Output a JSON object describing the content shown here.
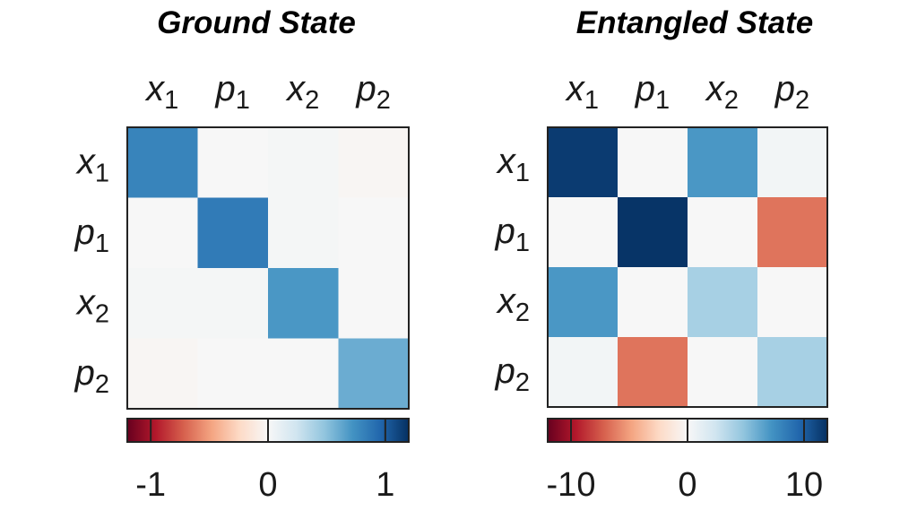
{
  "chart_data": [
    {
      "type": "heatmap",
      "title": "Ground State",
      "x_categories": [
        {
          "var": "x",
          "sub": "1"
        },
        {
          "var": "p",
          "sub": "1"
        },
        {
          "var": "x",
          "sub": "2"
        },
        {
          "var": "p",
          "sub": "2"
        }
      ],
      "y_categories": [
        {
          "var": "x",
          "sub": "1"
        },
        {
          "var": "p",
          "sub": "1"
        },
        {
          "var": "x",
          "sub": "2"
        },
        {
          "var": "p",
          "sub": "2"
        }
      ],
      "values": [
        [
          0.8,
          0.0,
          0.02,
          -0.02
        ],
        [
          0.0,
          0.85,
          0.02,
          0.0
        ],
        [
          0.02,
          0.02,
          0.7,
          0.0
        ],
        [
          -0.02,
          0.0,
          0.0,
          0.6
        ]
      ],
      "colorbar": {
        "min": -1.2,
        "max": 1.2,
        "ticks": [
          -1,
          0,
          1
        ],
        "tick_labels": [
          "-1",
          "0",
          "1"
        ]
      }
    },
    {
      "type": "heatmap",
      "title": "Entangled State",
      "x_categories": [
        {
          "var": "x",
          "sub": "1"
        },
        {
          "var": "p",
          "sub": "1"
        },
        {
          "var": "x",
          "sub": "2"
        },
        {
          "var": "p",
          "sub": "2"
        }
      ],
      "y_categories": [
        {
          "var": "x",
          "sub": "1"
        },
        {
          "var": "p",
          "sub": "1"
        },
        {
          "var": "x",
          "sub": "2"
        },
        {
          "var": "p",
          "sub": "2"
        }
      ],
      "values": [
        [
          11.5,
          0.0,
          7.0,
          0.3
        ],
        [
          0.0,
          11.8,
          0.0,
          -6.5
        ],
        [
          7.0,
          0.0,
          4.0,
          0.0
        ],
        [
          0.3,
          -6.5,
          0.0,
          4.0
        ]
      ],
      "colorbar": {
        "min": -12,
        "max": 12,
        "ticks": [
          -10,
          0,
          10
        ],
        "tick_labels": [
          "-10",
          "0",
          "10"
        ]
      }
    }
  ],
  "colors": {
    "scale": [
      "#67001f",
      "#b2182b",
      "#d6604d",
      "#f4a582",
      "#fddbc7",
      "#f7f7f7",
      "#d1e5f0",
      "#92c5de",
      "#4393c3",
      "#2166ac",
      "#053061"
    ]
  }
}
